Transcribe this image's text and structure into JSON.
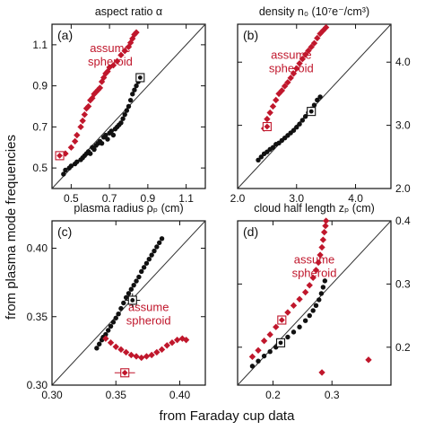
{
  "figure": {
    "y_axis_title": "from plasma mode frequencies",
    "x_axis_title": "from Faraday cup data"
  },
  "colors": {
    "black_series": "#111111",
    "red_series": "#c0172c",
    "identity_line": "#333333"
  },
  "chart_data": [
    {
      "type": "scatter",
      "panel_label": "(a)",
      "title": "aspect ratio α",
      "annotation": [
        "assume",
        "spheroid"
      ],
      "xlim": [
        0.4,
        1.2
      ],
      "ylim": [
        0.4,
        1.2
      ],
      "xticks": [
        "0.5",
        "0.7",
        "0.9",
        "1.1"
      ],
      "yticks": [
        "0.5",
        "0.7",
        "0.9",
        "1.1"
      ],
      "yaxis_side": "left",
      "identity_line": true,
      "series": [
        {
          "color": "black",
          "points": [
            [
              0.46,
              0.47
            ],
            [
              0.47,
              0.49
            ],
            [
              0.49,
              0.5
            ],
            [
              0.5,
              0.51
            ],
            [
              0.52,
              0.52
            ],
            [
              0.53,
              0.53
            ],
            [
              0.55,
              0.54
            ],
            [
              0.56,
              0.55
            ],
            [
              0.57,
              0.56
            ],
            [
              0.58,
              0.57
            ],
            [
              0.59,
              0.58
            ],
            [
              0.6,
              0.57
            ],
            [
              0.61,
              0.6
            ],
            [
              0.62,
              0.59
            ],
            [
              0.63,
              0.61
            ],
            [
              0.64,
              0.62
            ],
            [
              0.65,
              0.63
            ],
            [
              0.66,
              0.62
            ],
            [
              0.67,
              0.65
            ],
            [
              0.68,
              0.66
            ],
            [
              0.69,
              0.64
            ],
            [
              0.7,
              0.67
            ],
            [
              0.71,
              0.68
            ],
            [
              0.72,
              0.66
            ],
            [
              0.73,
              0.69
            ],
            [
              0.74,
              0.7
            ],
            [
              0.75,
              0.71
            ],
            [
              0.76,
              0.72
            ],
            [
              0.77,
              0.74
            ],
            [
              0.78,
              0.76
            ],
            [
              0.79,
              0.78
            ],
            [
              0.8,
              0.8
            ],
            [
              0.81,
              0.83
            ],
            [
              0.82,
              0.86
            ],
            [
              0.83,
              0.88
            ],
            [
              0.84,
              0.9
            ],
            [
              0.85,
              0.92
            ]
          ],
          "error_point": {
            "x": 0.86,
            "y": 0.94,
            "xerr": 0.015,
            "yerr": 0.02
          }
        },
        {
          "color": "red",
          "points": [
            [
              0.47,
              0.57
            ],
            [
              0.5,
              0.6
            ],
            [
              0.52,
              0.63
            ],
            [
              0.53,
              0.66
            ],
            [
              0.55,
              0.7
            ],
            [
              0.56,
              0.73
            ],
            [
              0.57,
              0.76
            ],
            [
              0.58,
              0.79
            ],
            [
              0.59,
              0.8
            ],
            [
              0.6,
              0.83
            ],
            [
              0.61,
              0.84
            ],
            [
              0.62,
              0.86
            ],
            [
              0.63,
              0.87
            ],
            [
              0.64,
              0.88
            ],
            [
              0.65,
              0.89
            ],
            [
              0.66,
              0.92
            ],
            [
              0.67,
              0.94
            ],
            [
              0.68,
              0.96
            ],
            [
              0.69,
              0.97
            ],
            [
              0.7,
              0.99
            ],
            [
              0.72,
              1.0
            ],
            [
              0.74,
              1.02
            ],
            [
              0.76,
              1.05
            ],
            [
              0.78,
              1.07
            ],
            [
              0.8,
              1.09
            ],
            [
              0.81,
              1.11
            ],
            [
              0.82,
              1.13
            ],
            [
              0.83,
              1.15
            ],
            [
              0.84,
              1.16
            ]
          ],
          "error_point": {
            "x": 0.44,
            "y": 0.56,
            "xerr": 0.015,
            "yerr": 0.02
          }
        }
      ]
    },
    {
      "type": "scatter",
      "panel_label": "(b)",
      "title": "density n₀ (10⁷e⁻/cm³)",
      "annotation": [
        "assume",
        "spheroid"
      ],
      "xlim": [
        2.0,
        4.6
      ],
      "ylim": [
        2.0,
        4.6
      ],
      "xticks": [
        "2.0",
        "3.0",
        "4.0"
      ],
      "yticks": [
        "2.0",
        "3.0",
        "4.0"
      ],
      "yaxis_side": "right",
      "identity_line": true,
      "series": [
        {
          "color": "black",
          "points": [
            [
              2.35,
              2.45
            ],
            [
              2.4,
              2.5
            ],
            [
              2.45,
              2.55
            ],
            [
              2.5,
              2.58
            ],
            [
              2.55,
              2.62
            ],
            [
              2.6,
              2.65
            ],
            [
              2.65,
              2.7
            ],
            [
              2.7,
              2.72
            ],
            [
              2.75,
              2.76
            ],
            [
              2.8,
              2.8
            ],
            [
              2.85,
              2.84
            ],
            [
              2.9,
              2.88
            ],
            [
              2.95,
              2.92
            ],
            [
              3.0,
              2.97
            ],
            [
              3.05,
              3.02
            ],
            [
              3.1,
              3.08
            ],
            [
              3.15,
              3.14
            ],
            [
              3.2,
              3.2
            ],
            [
              3.25,
              3.26
            ],
            [
              3.3,
              3.32
            ],
            [
              3.35,
              3.4
            ],
            [
              3.4,
              3.45
            ]
          ],
          "error_point": {
            "x": 3.25,
            "y": 3.22,
            "xerr": 0.06,
            "yerr": 0.05
          }
        },
        {
          "color": "red",
          "points": [
            [
              2.45,
              2.95
            ],
            [
              2.5,
              3.1
            ],
            [
              2.55,
              3.2
            ],
            [
              2.6,
              3.3
            ],
            [
              2.65,
              3.4
            ],
            [
              2.7,
              3.5
            ],
            [
              2.75,
              3.55
            ],
            [
              2.8,
              3.62
            ],
            [
              2.85,
              3.68
            ],
            [
              2.9,
              3.75
            ],
            [
              2.95,
              3.82
            ],
            [
              3.0,
              3.9
            ],
            [
              3.05,
              3.98
            ],
            [
              3.1,
              4.05
            ],
            [
              3.15,
              4.12
            ],
            [
              3.2,
              4.18
            ],
            [
              3.25,
              4.24
            ],
            [
              3.3,
              4.3
            ],
            [
              3.35,
              4.38
            ],
            [
              3.4,
              4.45
            ],
            [
              3.45,
              4.5
            ],
            [
              3.5,
              4.55
            ]
          ],
          "error_point": {
            "x": 2.5,
            "y": 2.98,
            "xerr": 0.06,
            "yerr": 0.06
          }
        }
      ]
    },
    {
      "type": "scatter",
      "panel_label": "(c)",
      "title": "plasma radius ρₚ (cm)",
      "annotation": [
        "assume",
        "spheroid"
      ],
      "xlim": [
        0.3,
        0.42
      ],
      "ylim": [
        0.3,
        0.42
      ],
      "xticks": [
        "0.30",
        "0.35",
        "0.40"
      ],
      "yticks": [
        "0.30",
        "0.35",
        "0.40"
      ],
      "yaxis_side": "left",
      "identity_line": true,
      "series": [
        {
          "color": "black",
          "points": [
            [
              0.335,
              0.327
            ],
            [
              0.337,
              0.33
            ],
            [
              0.339,
              0.333
            ],
            [
              0.34,
              0.335
            ],
            [
              0.342,
              0.337
            ],
            [
              0.344,
              0.34
            ],
            [
              0.346,
              0.343
            ],
            [
              0.348,
              0.346
            ],
            [
              0.35,
              0.349
            ],
            [
              0.352,
              0.352
            ],
            [
              0.354,
              0.356
            ],
            [
              0.356,
              0.36
            ],
            [
              0.358,
              0.364
            ],
            [
              0.36,
              0.367
            ],
            [
              0.362,
              0.37
            ],
            [
              0.364,
              0.373
            ],
            [
              0.366,
              0.376
            ],
            [
              0.368,
              0.379
            ],
            [
              0.37,
              0.383
            ],
            [
              0.372,
              0.386
            ],
            [
              0.374,
              0.389
            ],
            [
              0.376,
              0.392
            ],
            [
              0.378,
              0.395
            ],
            [
              0.38,
              0.398
            ],
            [
              0.382,
              0.401
            ],
            [
              0.384,
              0.404
            ],
            [
              0.386,
              0.407
            ]
          ],
          "error_point": {
            "x": 0.363,
            "y": 0.362,
            "xerr": 0.006,
            "yerr": 0.005
          }
        },
        {
          "color": "red",
          "points": [
            [
              0.342,
              0.334
            ],
            [
              0.346,
              0.331
            ],
            [
              0.35,
              0.328
            ],
            [
              0.354,
              0.326
            ],
            [
              0.358,
              0.324
            ],
            [
              0.362,
              0.322
            ],
            [
              0.366,
              0.321
            ],
            [
              0.37,
              0.32
            ],
            [
              0.374,
              0.321
            ],
            [
              0.378,
              0.322
            ],
            [
              0.382,
              0.324
            ],
            [
              0.386,
              0.326
            ],
            [
              0.39,
              0.329
            ],
            [
              0.394,
              0.331
            ],
            [
              0.398,
              0.333
            ],
            [
              0.402,
              0.334
            ],
            [
              0.405,
              0.333
            ]
          ],
          "error_point": {
            "x": 0.357,
            "y": 0.309,
            "xerr": 0.008,
            "yerr": 0.0
          }
        }
      ]
    },
    {
      "type": "scatter",
      "panel_label": "(d)",
      "title": "cloud half length zₚ (cm)",
      "annotation": [
        "assume",
        "spheroid"
      ],
      "xlim": [
        0.14,
        0.4
      ],
      "ylim": [
        0.14,
        0.4
      ],
      "xticks": [
        "0.2",
        "0.3"
      ],
      "yticks": [
        "0.2",
        "0.3",
        "0.4"
      ],
      "yaxis_side": "right",
      "identity_line": true,
      "series": [
        {
          "color": "black",
          "points": [
            [
              0.165,
              0.17
            ],
            [
              0.175,
              0.178
            ],
            [
              0.185,
              0.186
            ],
            [
              0.195,
              0.193
            ],
            [
              0.205,
              0.2
            ],
            [
              0.215,
              0.208
            ],
            [
              0.225,
              0.216
            ],
            [
              0.235,
              0.224
            ],
            [
              0.245,
              0.232
            ],
            [
              0.255,
              0.242
            ],
            [
              0.262,
              0.25
            ],
            [
              0.268,
              0.258
            ],
            [
              0.273,
              0.266
            ],
            [
              0.278,
              0.275
            ],
            [
              0.282,
              0.285
            ],
            [
              0.285,
              0.295
            ],
            [
              0.288,
              0.305
            ]
          ],
          "error_point": {
            "x": 0.213,
            "y": 0.207,
            "xerr": 0.005,
            "yerr": 0.004
          }
        },
        {
          "color": "red",
          "points": [
            [
              0.165,
              0.185
            ],
            [
              0.175,
              0.195
            ],
            [
              0.185,
              0.21
            ],
            [
              0.195,
              0.22
            ],
            [
              0.205,
              0.232
            ],
            [
              0.215,
              0.245
            ],
            [
              0.225,
              0.255
            ],
            [
              0.235,
              0.266
            ],
            [
              0.245,
              0.276
            ],
            [
              0.255,
              0.287
            ],
            [
              0.262,
              0.298
            ],
            [
              0.268,
              0.31
            ],
            [
              0.273,
              0.322
            ],
            [
              0.277,
              0.334
            ],
            [
              0.28,
              0.346
            ],
            [
              0.283,
              0.358
            ],
            [
              0.285,
              0.37
            ],
            [
              0.287,
              0.382
            ],
            [
              0.289,
              0.392
            ],
            [
              0.29,
              0.4
            ],
            [
              0.283,
              0.16
            ],
            [
              0.362,
              0.18
            ]
          ],
          "error_point": {
            "x": 0.215,
            "y": 0.243,
            "xerr": 0.005,
            "yerr": 0.006
          }
        }
      ]
    }
  ]
}
